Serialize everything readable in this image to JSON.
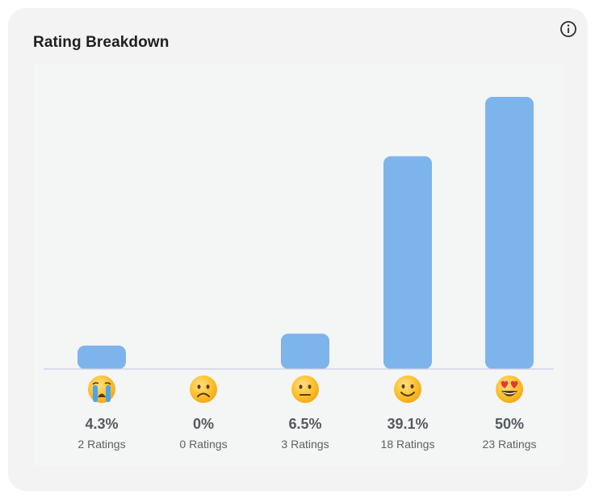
{
  "card": {
    "title": "Rating Breakdown",
    "info_icon": "info-circle-icon"
  },
  "colors": {
    "bar": "#7db4ec",
    "baseline": "#c9cfe6",
    "card_background": "#f2f3f2",
    "text_strong": "#555a5f"
  },
  "chart_data": {
    "type": "bar",
    "title": "Rating Breakdown",
    "categories": [
      "crying",
      "frowning",
      "neutral",
      "smiling",
      "heart-eyes"
    ],
    "category_icons": [
      "crying-face-icon",
      "frowning-face-icon",
      "neutral-face-icon",
      "smiling-face-icon",
      "heart-eyes-face-icon"
    ],
    "values": [
      4.3,
      0,
      6.5,
      39.1,
      50
    ],
    "value_labels": [
      "4.3%",
      "0%",
      "6.5%",
      "39.1%",
      "50%"
    ],
    "counts": [
      2,
      0,
      3,
      18,
      23
    ],
    "count_labels": [
      "2 Ratings",
      "0 Ratings",
      "3 Ratings",
      "18 Ratings",
      "23 Ratings"
    ],
    "ylim": [
      0,
      50
    ],
    "grid": false
  }
}
